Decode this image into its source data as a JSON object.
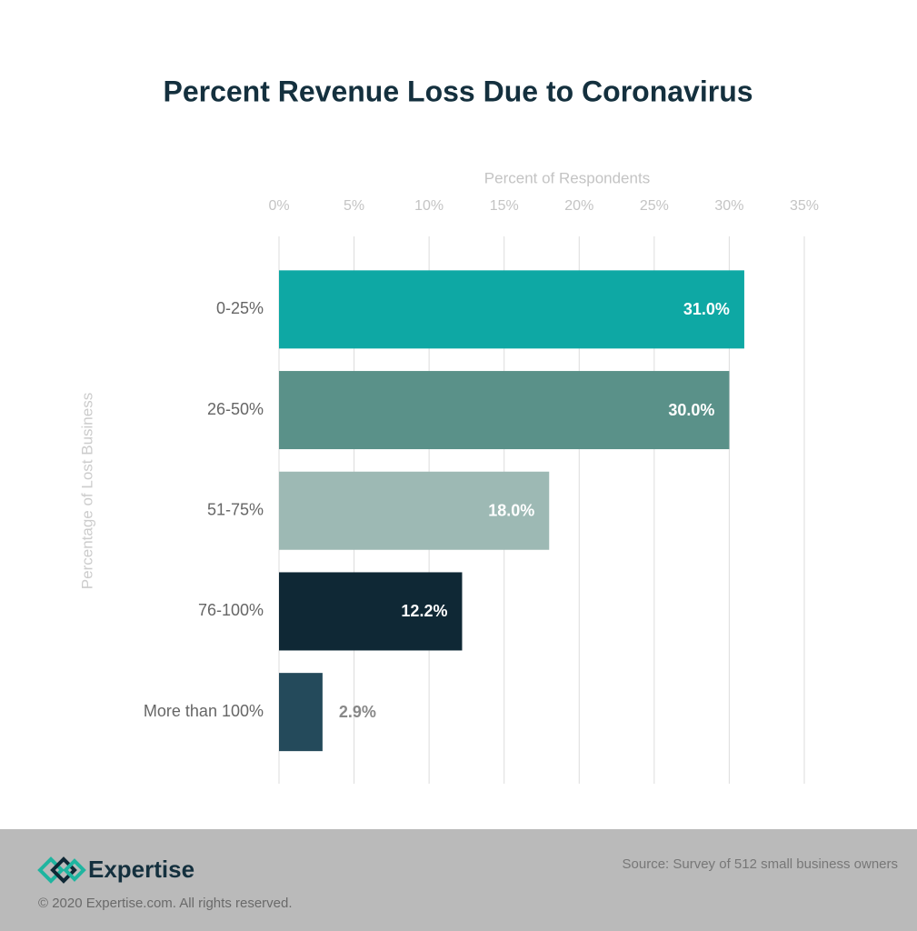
{
  "chart_data": {
    "type": "barh",
    "title": "Percent Revenue Loss Due to Coronavirus",
    "x_label": "Percent of Respondents",
    "y_label": "Percentage of Lost Business",
    "categories": [
      "0-25%",
      "26-50%",
      "51-75%",
      "76-100%",
      "More than 100%"
    ],
    "values": [
      31.0,
      30.0,
      18.0,
      12.2,
      2.9
    ],
    "value_labels": [
      "31.0%",
      "30.0%",
      "18.0%",
      "12.2%",
      "2.9%"
    ],
    "colors": [
      "#0ea8a4",
      "#5a9189",
      "#9db9b4",
      "#0f2835",
      "#244a5b"
    ],
    "xlim": [
      0,
      35
    ],
    "xticks": [
      {
        "value": 0,
        "label": "0%"
      },
      {
        "value": 5,
        "label": "5%"
      },
      {
        "value": 10,
        "label": "10%"
      },
      {
        "value": 15,
        "label": "15%"
      },
      {
        "value": 20,
        "label": "20%"
      },
      {
        "value": 25,
        "label": "25%"
      },
      {
        "value": 30,
        "label": "30%"
      },
      {
        "value": 35,
        "label": "35%"
      }
    ],
    "grid": true
  },
  "footer": {
    "brand": "Expertise",
    "copyright": "© 2020 Expertise.com. All rights reserved.",
    "source": "Source: Survey of 512 small business owners"
  }
}
